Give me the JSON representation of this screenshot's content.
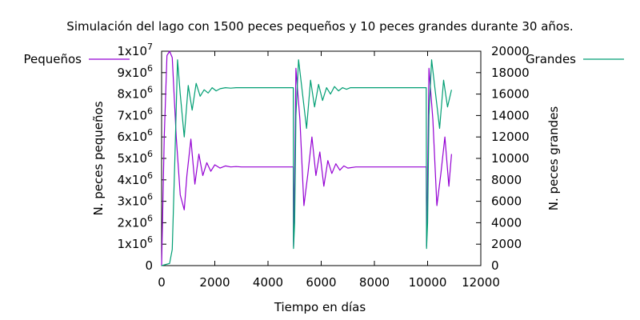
{
  "chart_data": {
    "type": "line",
    "title": "Simulación del lago con 1500 peces pequeños y 10 peces grandes durante 30 años.",
    "xlabel": "Tiempo en días",
    "ylabel": "N. peces pequeños",
    "y2label": "N. peces grandes",
    "xlim": [
      0,
      12000
    ],
    "ylim": [
      0,
      10000000
    ],
    "y2lim": [
      0,
      20000
    ],
    "xticks": [
      0,
      2000,
      4000,
      6000,
      8000,
      10000,
      12000
    ],
    "xtick_labels": [
      "0",
      "2000",
      "4000",
      "6000",
      "8000",
      "10000",
      "12000"
    ],
    "yticks": [
      0,
      1000000,
      2000000,
      3000000,
      4000000,
      5000000,
      6000000,
      7000000,
      8000000,
      9000000,
      10000000
    ],
    "ytick_labels": [
      {
        "base": "0",
        "exp": ""
      },
      {
        "base": "1x10",
        "exp": "6"
      },
      {
        "base": "2x10",
        "exp": "6"
      },
      {
        "base": "3x10",
        "exp": "6"
      },
      {
        "base": "4x10",
        "exp": "6"
      },
      {
        "base": "5x10",
        "exp": "6"
      },
      {
        "base": "6x10",
        "exp": "6"
      },
      {
        "base": "7x10",
        "exp": "6"
      },
      {
        "base": "8x10",
        "exp": "6"
      },
      {
        "base": "9x10",
        "exp": "6"
      },
      {
        "base": "1x10",
        "exp": "7"
      }
    ],
    "y2ticks": [
      0,
      2000,
      4000,
      6000,
      8000,
      10000,
      12000,
      14000,
      16000,
      18000,
      20000
    ],
    "y2tick_labels": [
      "0",
      "2000",
      "4000",
      "6000",
      "8000",
      "10000",
      "12000",
      "14000",
      "16000",
      "18000",
      "20000"
    ],
    "grid": false,
    "legend": "outside, top-left and top-right",
    "series": [
      {
        "name": "Pequeños",
        "axis": "left",
        "color": "#9400d3",
        "x": [
          0,
          100,
          200,
          300,
          400,
          550,
          700,
          850,
          950,
          1100,
          1250,
          1400,
          1550,
          1700,
          1850,
          2000,
          2200,
          2400,
          2600,
          2800,
          3000,
          3500,
          4000,
          4500,
          4950,
          4960,
          5000,
          5050,
          5200,
          5350,
          5500,
          5650,
          5800,
          5950,
          6100,
          6250,
          6400,
          6550,
          6700,
          6850,
          7000,
          7300,
          7600,
          8000,
          8500,
          9000,
          9500,
          9950,
          9960,
          10000,
          10050,
          10200,
          10350,
          10500,
          10650,
          10800,
          10900
        ],
        "y": [
          0,
          6000000,
          9800000,
          10000000,
          9700000,
          6000000,
          3300000,
          2600000,
          4200000,
          5900000,
          3800000,
          5200000,
          4200000,
          4800000,
          4400000,
          4700000,
          4550000,
          4650000,
          4600000,
          4620000,
          4600000,
          4600000,
          4600000,
          4600000,
          4600000,
          900000,
          4000000,
          9200000,
          6800000,
          2800000,
          4300000,
          6000000,
          4200000,
          5300000,
          3700000,
          4900000,
          4300000,
          4750000,
          4450000,
          4650000,
          4550000,
          4600000,
          4600000,
          4600000,
          4600000,
          4600000,
          4600000,
          4600000,
          900000,
          4000000,
          9200000,
          6800000,
          2800000,
          4300000,
          6000000,
          3700000,
          5200000
        ]
      },
      {
        "name": "Grandes",
        "axis": "right",
        "color": "#009e73",
        "x": [
          0,
          300,
          400,
          500,
          600,
          700,
          850,
          1000,
          1150,
          1300,
          1450,
          1600,
          1750,
          1900,
          2050,
          2200,
          2400,
          2600,
          2800,
          3000,
          3500,
          4000,
          4500,
          4950,
          4960,
          5000,
          5050,
          5150,
          5300,
          5450,
          5600,
          5750,
          5900,
          6050,
          6200,
          6350,
          6500,
          6650,
          6800,
          6950,
          7100,
          7300,
          7600,
          8000,
          8500,
          9000,
          9500,
          9950,
          9960,
          10000,
          10050,
          10150,
          10300,
          10450,
          10600,
          10750,
          10900
        ],
        "y": [
          0,
          200,
          1500,
          10000,
          19200,
          16000,
          12000,
          16800,
          14500,
          17000,
          15800,
          16400,
          16100,
          16600,
          16300,
          16500,
          16600,
          16550,
          16600,
          16600,
          16600,
          16600,
          16600,
          16600,
          1600,
          4000,
          14000,
          19200,
          16000,
          12800,
          17300,
          14800,
          16900,
          15400,
          16600,
          16000,
          16700,
          16300,
          16600,
          16450,
          16600,
          16600,
          16600,
          16600,
          16600,
          16600,
          16600,
          16600,
          1600,
          4000,
          14000,
          19200,
          16000,
          12800,
          17300,
          14800,
          16400
        ]
      }
    ]
  }
}
